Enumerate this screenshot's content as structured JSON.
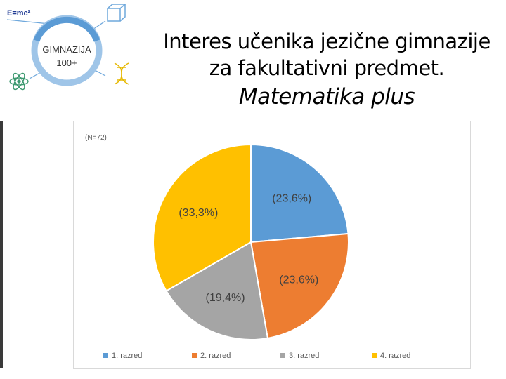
{
  "slide": {
    "title_line1": "Interes učenika jezične gimnazije",
    "title_line2": "za fakultativni predmet.",
    "title_line3": "Matematika  plus"
  },
  "logo": {
    "formula": "E=mc²",
    "line1": "GIMNAZIJA",
    "line2": "100+"
  },
  "chart_data": {
    "type": "pie",
    "note": "(N=72)",
    "categories": [
      "1. razred",
      "2. razred",
      "3. razred",
      "4. razred"
    ],
    "values": [
      23.6,
      23.6,
      19.4,
      33.3
    ],
    "data_labels": [
      "(23,6%)",
      "(23,6%)",
      "(19,4%)",
      "(33,3%)"
    ],
    "colors": [
      "#5B9BD5",
      "#ED7D31",
      "#A5A5A5",
      "#FFC000"
    ],
    "legend_position": "bottom"
  }
}
